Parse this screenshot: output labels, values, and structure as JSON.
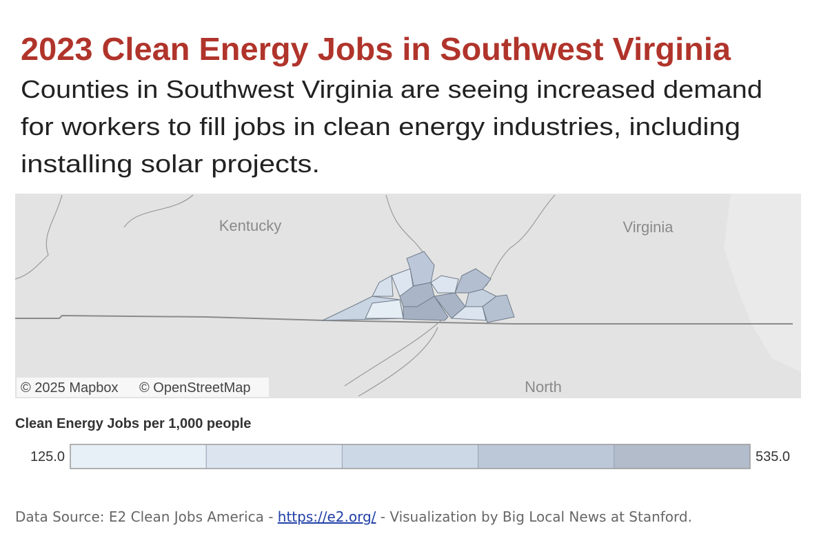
{
  "header": {
    "title": "2023 Clean Energy Jobs in Southwest Virginia",
    "subtitle_lines": [
      "Counties in Southwest Virginia are seeing increased demand",
      "for workers to fill jobs in clean energy industries, including",
      "installing solar projects."
    ]
  },
  "map": {
    "labels": [
      "Kentucky",
      "Virginia",
      "North"
    ],
    "attribution": [
      "© 2025 Mapbox",
      "© OpenStreetMap"
    ]
  },
  "legend": {
    "title": "Clean Energy Jobs per 1,000 people",
    "min": {
      "value": 125,
      "label": "125.0"
    },
    "max": {
      "value": 535,
      "label": "535.0"
    },
    "colors": [
      "#e8f0f7",
      "#dbe4ef",
      "#ccd8e5",
      "#bcc7d8",
      "#b2bccb"
    ]
  },
  "footer": {
    "before": "Data Source: E2 Clean Jobs America - ",
    "link": "https://e2.org/",
    "after": " - Visualization by Big Local News at Stanford."
  }
}
